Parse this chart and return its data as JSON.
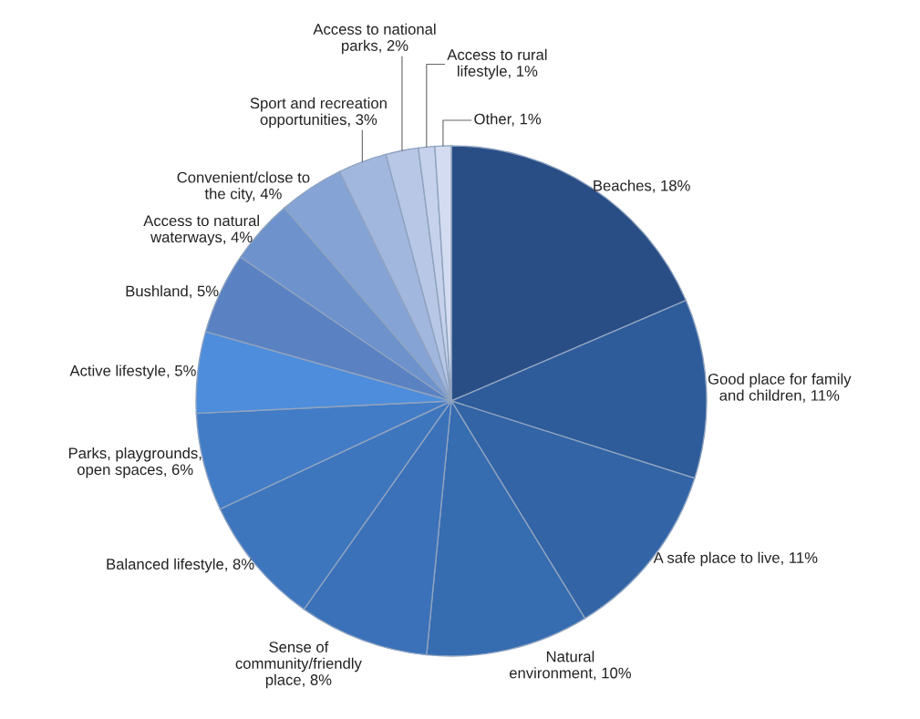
{
  "chart_data": {
    "type": "pie",
    "categories": [
      "Beaches",
      "Good place for family\nand children",
      "A safe place to live",
      "Natural\nenvironment",
      "Sense of\ncommunity/friendly\nplace",
      "Balanced lifestyle",
      "Parks, playgrounds,\nopen spaces",
      "Active lifestyle",
      "Bushland",
      "Access to natural\nwaterways",
      "Convenient/close to\nthe city",
      "Sport and recreation\nopportunities",
      "Access to national\nparks",
      "Access to rural\nlifestyle",
      "Other"
    ],
    "values": [
      18,
      11,
      11,
      10,
      8,
      8,
      6,
      5,
      5,
      4,
      4,
      3,
      2,
      1,
      1
    ],
    "value_labels": [
      "18%",
      "11%",
      "11%",
      "10%",
      "8%",
      "8%",
      "6%",
      "5%",
      "5%",
      "4%",
      "4%",
      "3%",
      "2%",
      "1%",
      "1%"
    ],
    "colors": [
      "#294e85",
      "#2e5b99",
      "#3264a6",
      "#366cb0",
      "#3a71b8",
      "#3e76be",
      "#427cc6",
      "#4d8ddb",
      "#5a82c2",
      "#6d92cc",
      "#86a3d6",
      "#a2b7de",
      "#b7c7e5",
      "#c6d2eb",
      "#d3dcf0"
    ],
    "legend": false
  }
}
